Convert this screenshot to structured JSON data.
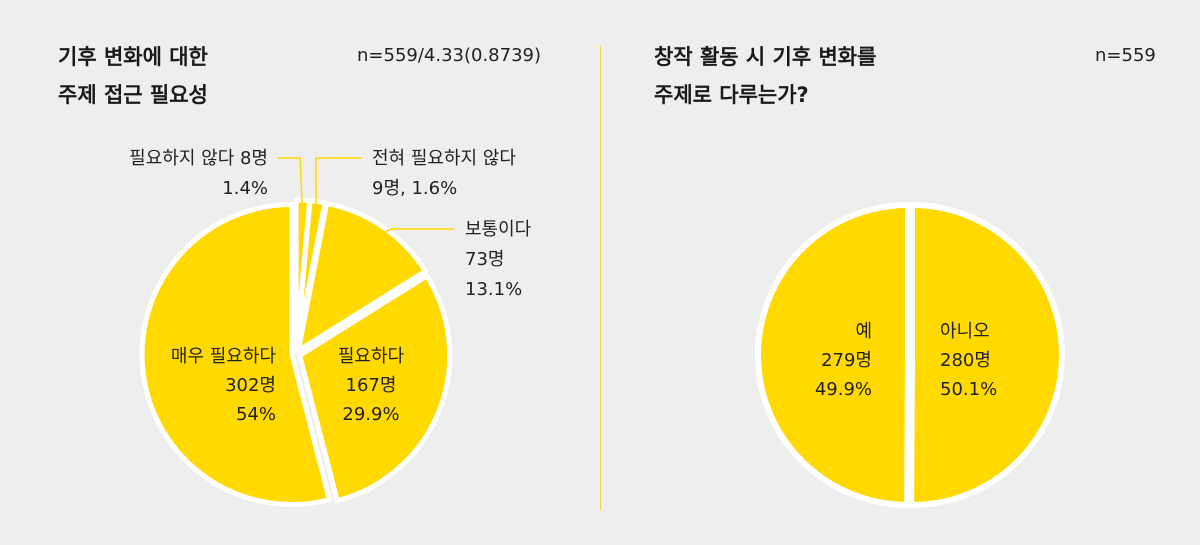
{
  "left": {
    "title_line1": "기후 변화에 대한",
    "title_line2": "주제 접근 필요성",
    "n_label": "n=559/4.33(0.8739)"
  },
  "right": {
    "title_line1": "창작 활동 시 기후 변화를",
    "title_line2": "주제로 다루는가?",
    "n_label": "n=559"
  },
  "colors": {
    "slice": "#ffd900",
    "separator": "#ffffff",
    "leader": "#ffd900",
    "background": "#eeeeee"
  },
  "chart_data": [
    {
      "type": "pie",
      "total": 559,
      "slices": [
        {
          "name": "필요하지 않다",
          "count_label": "8명",
          "percent_label": "1.4%",
          "value": 8,
          "percent": 1.4
        },
        {
          "name": "전혀 필요하지 않다",
          "count_label": "9명",
          "percent_label": "1.6%",
          "value": 9,
          "percent": 1.6
        },
        {
          "name": "보통이다",
          "count_label": "73명",
          "percent_label": "13.1%",
          "value": 73,
          "percent": 13.1
        },
        {
          "name": "필요하다",
          "count_label": "167명",
          "percent_label": "29.9%",
          "value": 167,
          "percent": 29.9
        },
        {
          "name": "매우 필요하다",
          "count_label": "302명",
          "percent_label": "54%",
          "value": 302,
          "percent": 54
        }
      ]
    },
    {
      "type": "pie",
      "total": 559,
      "slices": [
        {
          "name": "아니오",
          "count_label": "280명",
          "percent_label": "50.1%",
          "value": 280,
          "percent": 50.1
        },
        {
          "name": "예",
          "count_label": "279명",
          "percent_label": "49.9%",
          "value": 279,
          "percent": 49.9
        }
      ]
    }
  ]
}
